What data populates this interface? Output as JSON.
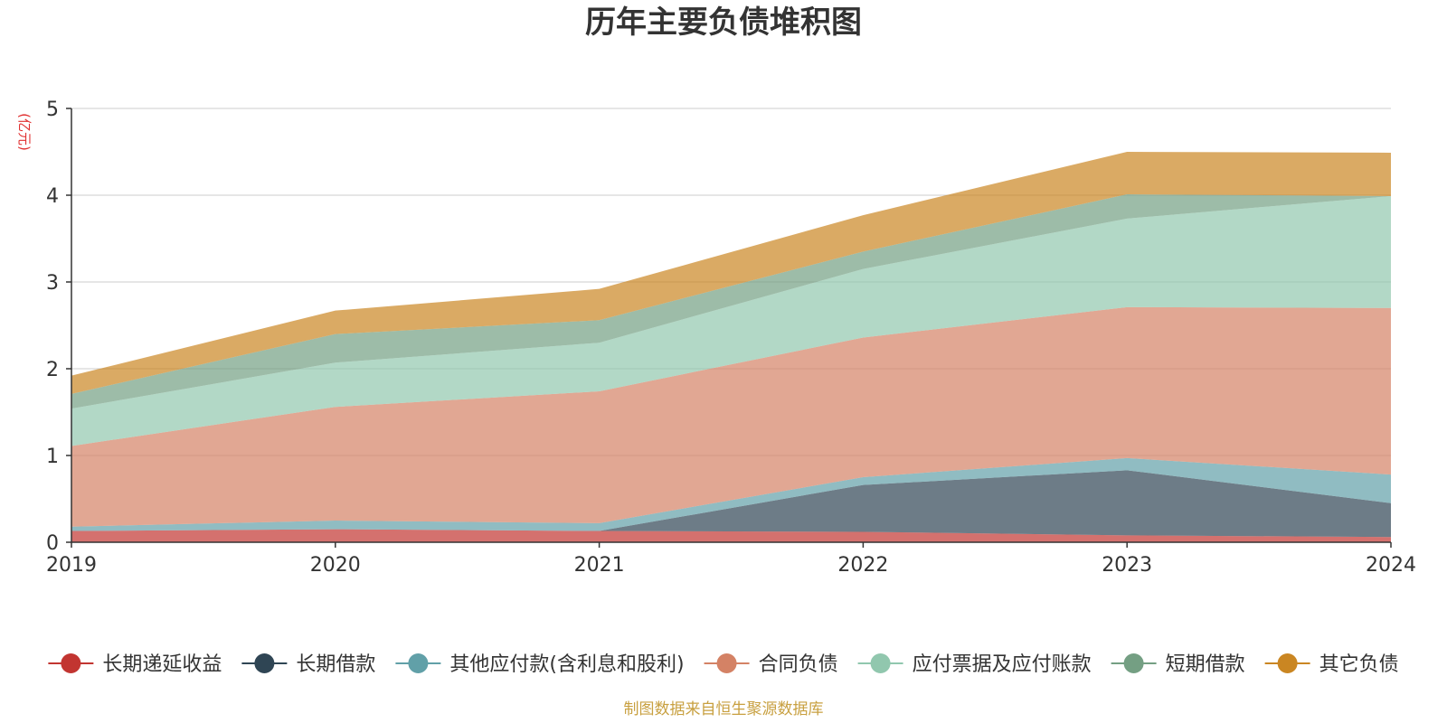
{
  "chart_data": {
    "type": "area",
    "stacked": true,
    "title": "历年主要负债堆积图",
    "ylabel": "(亿元)",
    "source": "制图数据来自恒生聚源数据库",
    "x": [
      "2019",
      "2020",
      "2021",
      "2022",
      "2023",
      "2024"
    ],
    "ylim": [
      0,
      5
    ],
    "yticks": [
      0,
      1,
      2,
      3,
      4,
      5
    ],
    "grid": true,
    "legend_position": "bottom",
    "series": [
      {
        "name": "长期递延收益",
        "color": "#c23531",
        "values": [
          0.13,
          0.15,
          0.13,
          0.12,
          0.08,
          0.06
        ]
      },
      {
        "name": "长期借款",
        "color": "#2f4554",
        "values": [
          0.0,
          0.0,
          0.0,
          0.54,
          0.75,
          0.39
        ]
      },
      {
        "name": "其他应付款(含利息和股利)",
        "color": "#61a0a8",
        "values": [
          0.05,
          0.1,
          0.09,
          0.09,
          0.14,
          0.33
        ]
      },
      {
        "name": "合同负债",
        "color": "#d48265",
        "values": [
          0.93,
          1.31,
          1.52,
          1.61,
          1.74,
          1.92
        ]
      },
      {
        "name": "应付票据及应付账款",
        "color": "#91c7ae",
        "values": [
          0.43,
          0.51,
          0.56,
          0.79,
          1.02,
          1.29
        ]
      },
      {
        "name": "短期借款",
        "color": "#749f83",
        "values": [
          0.17,
          0.33,
          0.26,
          0.2,
          0.28,
          0.0
        ]
      },
      {
        "name": "其它负债",
        "color": "#ca8622",
        "values": [
          0.21,
          0.27,
          0.36,
          0.42,
          0.49,
          0.5
        ]
      }
    ]
  }
}
